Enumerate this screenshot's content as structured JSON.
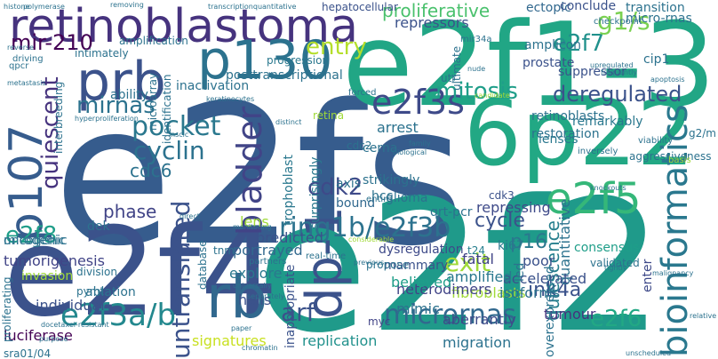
{
  "colors": {
    "background": "#ffffff",
    "palette": [
      "#440154",
      "#46327e",
      "#365c8d",
      "#277f8e",
      "#1fa187",
      "#4ac16d",
      "#a0da39",
      "#fde725"
    ]
  },
  "words": [
    {
      "text": "e2fs",
      "color": "#365c8d"
    },
    {
      "text": "e2f2",
      "color": "#1f9a8a"
    },
    {
      "text": "e2f1-3",
      "color": "#21a685"
    },
    {
      "text": "e2f4",
      "color": "#3b528b"
    },
    {
      "text": "6p22",
      "color": "#22a884"
    },
    {
      "text": "retinoblastoma",
      "color": "#46337e"
    },
    {
      "text": "p130",
      "color": "#2c728e"
    },
    {
      "text": "prb",
      "color": "#3b528b"
    },
    {
      "text": "rb",
      "color": "#31688e"
    },
    {
      "text": "dp-1",
      "color": "#3b528b"
    },
    {
      "text": "p107",
      "color": "#365c8d"
    },
    {
      "text": "e2f3s",
      "color": "#3e4a89"
    },
    {
      "text": "e2f5",
      "color": "#35b779"
    },
    {
      "text": "bioinformatics",
      "color": "#2a788e"
    },
    {
      "text": "bladder",
      "color": "#414487"
    },
    {
      "text": "e2f3a/b",
      "color": "#23888e"
    },
    {
      "text": "ring1b/e2f3b",
      "color": "#2c728e"
    },
    {
      "text": "micrornas",
      "color": "#31688e"
    },
    {
      "text": "untranslated",
      "color": "#3b528b"
    },
    {
      "text": "pocket",
      "color": "#2a788e"
    },
    {
      "text": "cyclin",
      "color": "#2c728e"
    },
    {
      "text": "mitosis",
      "color": "#1f9e89"
    },
    {
      "text": "deregulated",
      "color": "#3b528b"
    },
    {
      "text": "mirnas",
      "color": "#2c728e"
    },
    {
      "text": "quiescent",
      "color": "#46337e"
    },
    {
      "text": "e2f7",
      "color": "#21918c"
    },
    {
      "text": "e2f6",
      "color": "#22a884"
    },
    {
      "text": "arf",
      "color": "#3b528b"
    },
    {
      "text": "exit",
      "color": "#a0da39"
    },
    {
      "text": "cdk2",
      "color": "#3e4a89"
    },
    {
      "text": "e2f8",
      "color": "#1f9e89"
    },
    {
      "text": "entry",
      "color": "#b5de2b"
    },
    {
      "text": "g1/s",
      "color": "#7ad151"
    },
    {
      "text": "mir-210",
      "color": "#440154"
    },
    {
      "text": "proliferative",
      "color": "#4ac16d"
    },
    {
      "text": "cycle",
      "color": "#3b528b"
    },
    {
      "text": "ink4a",
      "color": "#3b528b"
    },
    {
      "text": "phase",
      "color": "#414487"
    },
    {
      "text": "cdc6",
      "color": "#2c728e"
    },
    {
      "text": "p16",
      "color": "#2a788e"
    },
    {
      "text": "quiescence",
      "color": "#277f8e"
    },
    {
      "text": "quantitative",
      "color": "#2c728e"
    },
    {
      "text": "tumorigenesis",
      "color": "#414487"
    },
    {
      "text": "individual",
      "color": "#3b528b"
    },
    {
      "text": "luciferase",
      "color": "#440154"
    },
    {
      "text": "signatures",
      "color": "#c8e020"
    },
    {
      "text": "replication",
      "color": "#21918c"
    },
    {
      "text": "migration",
      "color": "#2c728e"
    },
    {
      "text": "aberrantly",
      "color": "#3e4a89"
    },
    {
      "text": "fibroblasts",
      "color": "#a0da39"
    },
    {
      "text": "heterodimers",
      "color": "#414487"
    },
    {
      "text": "isoforms",
      "color": "#2c728e"
    },
    {
      "text": "accelerated",
      "color": "#3b528b"
    },
    {
      "text": "amplified",
      "color": "#2a788e"
    },
    {
      "text": "fatal",
      "color": "#414487"
    },
    {
      "text": "poor",
      "color": "#3b528b"
    },
    {
      "text": "tumour",
      "color": "#46337e"
    },
    {
      "text": "overexpressed",
      "color": "#2c728e"
    },
    {
      "text": "enter",
      "color": "#3e4a89"
    },
    {
      "text": "mimic",
      "color": "#2c728e"
    },
    {
      "text": "myc",
      "color": "#414487"
    },
    {
      "text": "hells",
      "color": "#3b528b"
    },
    {
      "text": "explore",
      "color": "#2a788e"
    },
    {
      "text": "portrayed",
      "color": "#31688e"
    },
    {
      "text": "inappropriate",
      "color": "#3b528b"
    },
    {
      "text": "mammary",
      "color": "#3b528b"
    },
    {
      "text": "believed",
      "color": "#1f9e89"
    },
    {
      "text": "repressing",
      "color": "#3e4a89"
    },
    {
      "text": "consensus",
      "color": "#1f9e89"
    },
    {
      "text": "validated",
      "color": "#2c728e"
    },
    {
      "text": "predicted",
      "color": "#3b528b"
    },
    {
      "text": "dysregulation",
      "color": "#3e4a89"
    },
    {
      "text": "ki67",
      "color": "#2a788e"
    },
    {
      "text": "t24",
      "color": "#277f8e"
    },
    {
      "text": "led",
      "color": "#2c728e"
    },
    {
      "text": "lens",
      "color": "#a0da39"
    },
    {
      "text": "dek",
      "color": "#2c728e"
    },
    {
      "text": "hcc",
      "color": "#2c728e"
    },
    {
      "text": "glioma",
      "color": "#2c728e"
    },
    {
      "text": "strikingly",
      "color": "#2c728e"
    },
    {
      "text": "surprisingly",
      "color": "#2a788e"
    },
    {
      "text": "trophoblast",
      "color": "#2a788e"
    },
    {
      "text": "axis",
      "color": "#2c728e"
    },
    {
      "text": "bound",
      "color": "#31688e"
    },
    {
      "text": "cdk3",
      "color": "#3b528b"
    },
    {
      "text": "qrt-pcr",
      "color": "#2c728e"
    },
    {
      "text": "repressors",
      "color": "#3b528b"
    },
    {
      "text": "ectopic",
      "color": "#31688e"
    },
    {
      "text": "conclude",
      "color": "#3b528b"
    },
    {
      "text": "transition",
      "color": "#2c728e"
    },
    {
      "text": "micro-rnas",
      "color": "#2c728e"
    },
    {
      "text": "cip1",
      "color": "#2c728e"
    },
    {
      "text": "suppressor",
      "color": "#3b528b"
    },
    {
      "text": "prostate",
      "color": "#3b528b"
    },
    {
      "text": "amplicon",
      "color": "#2c728e"
    },
    {
      "text": "remarkably",
      "color": "#2a788e"
    },
    {
      "text": "retinoblasts",
      "color": "#2c728e"
    },
    {
      "text": "restoration",
      "color": "#2c728e"
    },
    {
      "text": "lenses",
      "color": "#2a788e"
    },
    {
      "text": "inactivation",
      "color": "#2c728e"
    },
    {
      "text": "arrest",
      "color": "#2c728e"
    },
    {
      "text": "cerna",
      "color": "#2c728e"
    },
    {
      "text": "cdc2",
      "color": "#2c728e"
    },
    {
      "text": "posttranscriptional",
      "color": "#2c728e"
    },
    {
      "text": "progression",
      "color": "#2a788e"
    },
    {
      "text": "amplification",
      "color": "#2c728e"
    },
    {
      "text": "ability",
      "color": "#2c728e"
    },
    {
      "text": "identification",
      "color": "#2c728e"
    },
    {
      "text": "microarray",
      "color": "#2c728e"
    },
    {
      "text": "interbreeding",
      "color": "#2c728e"
    },
    {
      "text": "intimately",
      "color": "#2c728e"
    },
    {
      "text": "hepatocellular",
      "color": "#3b528b"
    },
    {
      "text": "mitogenic",
      "color": "#2c728e"
    },
    {
      "text": "oncogenic",
      "color": "#2c728e"
    },
    {
      "text": "invasion",
      "color": "#a0da39"
    },
    {
      "text": "division",
      "color": "#2c728e"
    },
    {
      "text": "ablation",
      "color": "#2c728e"
    },
    {
      "text": "pymt",
      "color": "#2c728e"
    },
    {
      "text": "tnm",
      "color": "#2c728e"
    },
    {
      "text": "database",
      "color": "#2c728e"
    },
    {
      "text": "sra01/04",
      "color": "#2c728e"
    },
    {
      "text": "proliferating",
      "color": "#2c728e"
    },
    {
      "text": "ultimate",
      "color": "#2c728e"
    },
    {
      "text": "utr",
      "color": "#2c728e"
    },
    {
      "text": "mir34a",
      "color": "#2c728e"
    },
    {
      "text": "retina",
      "color": "#a0da39"
    },
    {
      "text": "forced",
      "color": "#2c728e"
    },
    {
      "text": "real-time",
      "color": "#2c728e"
    },
    {
      "text": "propose",
      "color": "#2c728e"
    },
    {
      "text": "g2/m",
      "color": "#2c728e"
    },
    {
      "text": "viability",
      "color": "#2c728e"
    },
    {
      "text": "aggressiveness",
      "color": "#2c728e"
    },
    {
      "text": "inversely",
      "color": "#2c728e"
    },
    {
      "text": "checkpoint",
      "color": "#2c728e"
    },
    {
      "text": "driving",
      "color": "#2c728e"
    },
    {
      "text": "qpcr",
      "color": "#2c728e"
    },
    {
      "text": "histone",
      "color": "#2c728e"
    },
    {
      "text": "polymerase",
      "color": "#2c728e"
    },
    {
      "text": "removing",
      "color": "#2c728e"
    },
    {
      "text": "transcriptionquantitative",
      "color": "#2c728e"
    },
    {
      "text": "reverse",
      "color": "#2c728e"
    },
    {
      "text": "metastasis",
      "color": "#2c728e"
    },
    {
      "text": "frequently",
      "color": "#2c728e"
    },
    {
      "text": "upregulated",
      "color": "#2c728e"
    },
    {
      "text": "apoptosis",
      "color": "#2c728e"
    },
    {
      "text": "basis",
      "color": "#a0da39"
    },
    {
      "text": "knockouts",
      "color": "#2c728e"
    },
    {
      "text": "partners",
      "color": "#2c728e"
    },
    {
      "text": "entire",
      "color": "#2c728e"
    },
    {
      "text": "direct",
      "color": "#2c728e"
    },
    {
      "text": "biological",
      "color": "#2c728e"
    },
    {
      "text": "family",
      "color": "#2c728e"
    },
    {
      "text": "distinct",
      "color": "#2c728e"
    },
    {
      "text": "monitoring",
      "color": "#2c728e"
    },
    {
      "text": "separately",
      "color": "#2c728e"
    },
    {
      "text": "universally",
      "color": "#2c728e"
    },
    {
      "text": "docetaxel-resistant",
      "color": "#2c728e"
    },
    {
      "text": "purpose",
      "color": "#2c728e"
    },
    {
      "text": "chromatin",
      "color": "#2c728e"
    },
    {
      "text": "paper",
      "color": "#2c728e"
    },
    {
      "text": "relative",
      "color": "#2c728e"
    },
    {
      "text": "malignancy",
      "color": "#2c728e"
    },
    {
      "text": "tightly",
      "color": "#2c728e"
    },
    {
      "text": "unscheduled",
      "color": "#2c728e"
    },
    {
      "text": "previous",
      "color": "#2c728e"
    },
    {
      "text": "hyperproliferation",
      "color": "#2c728e"
    },
    {
      "text": "keratinocytes",
      "color": "#2c728e"
    },
    {
      "text": "nude",
      "color": "#2c728e"
    },
    {
      "text": "candidate",
      "color": "#a0da39"
    },
    {
      "text": "nsclc",
      "color": "#2c728e"
    },
    {
      "text": "considerable",
      "color": "#a0da39"
    }
  ]
}
